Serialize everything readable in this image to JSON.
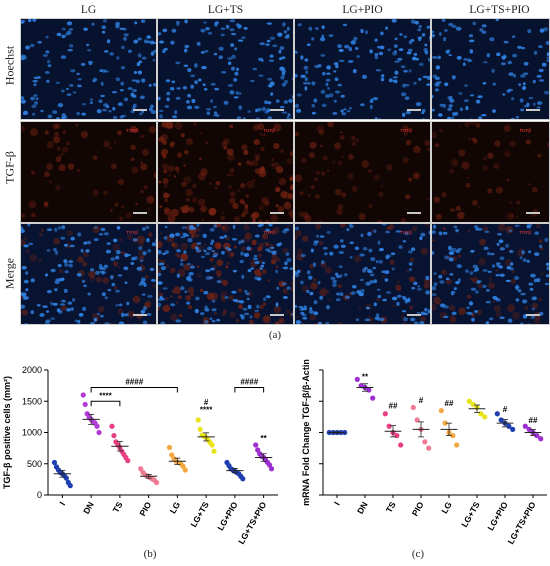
{
  "figure": {
    "column_headers": [
      "LG",
      "LG+TS",
      "LG+PIO",
      "LG+TS+PIO"
    ],
    "row_labels": [
      "Hoechst",
      "TGF-β",
      "Merge"
    ],
    "panel_tag": "TGFβ",
    "caption_a": "(a)",
    "caption_b": "(b)",
    "caption_c": "(c)"
  },
  "colors": {
    "hoechst_bg": "#06122e",
    "nucleus": "#2f7fe0",
    "tgf_bg": "#120605",
    "tgf_signal": "#7a2412",
    "merge_bg": "#071330"
  },
  "chart_data": [
    {
      "type": "scatter",
      "ylabel": "TGF-β positive cells (mm²)",
      "categories": [
        "I",
        "DN",
        "TS",
        "PIO",
        "LG",
        "LG+TS",
        "LG+PIO",
        "LG+TS+PIO"
      ],
      "ylim": [
        0,
        2000
      ],
      "yticks": [
        "0",
        "500",
        "1000",
        "1500",
        "2000"
      ],
      "colors": [
        "#1f3fb0",
        "#b33bd6",
        "#e83f84",
        "#f07a94",
        "#f3a742",
        "#e9e417",
        "#1f3fb0",
        "#9b2fd0"
      ],
      "means": [
        340,
        1210,
        780,
        300,
        540,
        930,
        390,
        600
      ],
      "sems": [
        55,
        80,
        75,
        30,
        50,
        65,
        35,
        60
      ],
      "points": [
        [
          520,
          450,
          400,
          360,
          340,
          310,
          270,
          200,
          150
        ],
        [
          1600,
          1450,
          1300,
          1240,
          1210,
          1180,
          1150,
          1100,
          1000
        ],
        [
          1100,
          950,
          850,
          800,
          760,
          700,
          650,
          600,
          550
        ],
        [
          420,
          360,
          320,
          300,
          280,
          260,
          240,
          200
        ],
        [
          760,
          640,
          580,
          540,
          520,
          500,
          460,
          400
        ],
        [
          1200,
          1050,
          960,
          940,
          920,
          880,
          840,
          800,
          700
        ],
        [
          520,
          470,
          420,
          400,
          380,
          360,
          340,
          300,
          260
        ],
        [
          800,
          720,
          660,
          620,
          600,
          560,
          520,
          480,
          420
        ]
      ],
      "annotations": [
        {
          "text": "****",
          "category": "LG+TS",
          "y": 1370
        },
        {
          "text": "#",
          "category": "LG+TS",
          "y": 1490
        },
        {
          "text": "**",
          "category": "LG+TS+PIO",
          "y": 910
        }
      ],
      "brackets": [
        {
          "text": "****",
          "from": "DN",
          "to": "TS",
          "y": 1500
        },
        {
          "text": "####",
          "from": "DN",
          "to": "LG",
          "y": 1720
        },
        {
          "text": "####",
          "from": "LG+PIO",
          "to": "LG+TS+PIO",
          "y": 1720
        }
      ]
    },
    {
      "type": "scatter",
      "ylabel": "mRNA Fold Change TGF-β/β-Actin",
      "categories": [
        "I",
        "DN",
        "TS",
        "PIO",
        "LG",
        "LG+TS",
        "LG+PIO",
        "LG+TS+PIO"
      ],
      "ylim": [
        0,
        2.0
      ],
      "colors": [
        "#1f3fb0",
        "#9b2fd0",
        "#e83f84",
        "#f07a94",
        "#f3a742",
        "#e9e417",
        "#1f3fb0",
        "#9b2fd0"
      ],
      "means": [
        1.0,
        1.72,
        1.02,
        1.05,
        1.05,
        1.38,
        1.15,
        1.0
      ],
      "sems": [
        0.01,
        0.06,
        0.09,
        0.12,
        0.1,
        0.06,
        0.06,
        0.05
      ],
      "points": [
        [
          1.0,
          1.0,
          1.0,
          1.0,
          1.0
        ],
        [
          1.85,
          1.75,
          1.72,
          1.68,
          1.55
        ],
        [
          1.3,
          1.1,
          1.0,
          0.95,
          0.8
        ],
        [
          1.4,
          1.2,
          1.05,
          0.85,
          0.75
        ],
        [
          1.35,
          1.15,
          1.0,
          0.95,
          0.8
        ],
        [
          1.5,
          1.45,
          1.4,
          1.3,
          1.25
        ],
        [
          1.3,
          1.2,
          1.15,
          1.1,
          1.05
        ],
        [
          1.1,
          1.05,
          1.0,
          0.95,
          0.9
        ]
      ],
      "annotations": [
        {
          "text": "**",
          "category": "DN",
          "y": 1.9
        },
        {
          "text": "##",
          "category": "TS",
          "y": 1.43
        },
        {
          "text": "#",
          "category": "PIO",
          "y": 1.52
        },
        {
          "text": "##",
          "category": "LG",
          "y": 1.47
        },
        {
          "text": "#",
          "category": "LG+PIO",
          "y": 1.38
        },
        {
          "text": "##",
          "category": "LG+TS+PIO",
          "y": 1.2
        }
      ],
      "brackets": []
    }
  ]
}
